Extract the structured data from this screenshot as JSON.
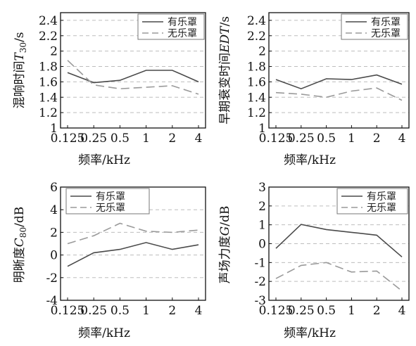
{
  "legend": {
    "with_shell": "有乐罩",
    "without_shell": "无乐罩"
  },
  "colors": {
    "with_shell": "#4a4a4a",
    "without_shell": "#9a9a9a",
    "grid": "#bdbdbd",
    "axis": "#111111"
  },
  "chart_data": [
    {
      "type": "line",
      "xlabel": "频率/kHz",
      "ylabel_pre": "混响时间",
      "ylabel_sym": "T",
      "ylabel_sub": "30",
      "ylabel_post": "/s",
      "x_ticks": [
        "0.125",
        "0.25",
        "0.5",
        "1",
        "2",
        "4"
      ],
      "y_ticks": [
        "1",
        "1.2",
        "1.4",
        "1.6",
        "1.8",
        "2",
        "2.2",
        "2.4"
      ],
      "ylim": [
        1,
        2.5
      ],
      "legend_position": "top-right",
      "series": [
        {
          "name": "有乐罩",
          "values": [
            1.72,
            1.59,
            1.62,
            1.75,
            1.75,
            1.6
          ]
        },
        {
          "name": "无乐罩",
          "values": [
            1.88,
            1.56,
            1.51,
            1.53,
            1.55,
            1.44
          ]
        }
      ]
    },
    {
      "type": "line",
      "xlabel": "频率/kHz",
      "ylabel_pre": "早期衰变时间",
      "ylabel_sym": "EDT",
      "ylabel_sub": "",
      "ylabel_post": "/s",
      "x_ticks": [
        "0.125",
        "0.25",
        "0.5",
        "1",
        "2",
        "4"
      ],
      "y_ticks": [
        "1",
        "1.2",
        "1.4",
        "1.6",
        "1.8",
        "2",
        "2.2",
        "2.4"
      ],
      "ylim": [
        1,
        2.5
      ],
      "legend_position": "top-right",
      "series": [
        {
          "name": "有乐罩",
          "values": [
            1.63,
            1.51,
            1.64,
            1.63,
            1.69,
            1.57
          ]
        },
        {
          "name": "无乐罩",
          "values": [
            1.46,
            1.44,
            1.4,
            1.48,
            1.52,
            1.36
          ]
        }
      ]
    },
    {
      "type": "line",
      "xlabel": "频率/kHz",
      "ylabel_pre": "明晰度",
      "ylabel_sym": "C",
      "ylabel_sub": "80",
      "ylabel_post": "/dB",
      "x_ticks": [
        "0.125",
        "0.25",
        "0.5",
        "1",
        "2",
        "4"
      ],
      "y_ticks": [
        "-4",
        "-2",
        "0",
        "2",
        "4",
        "6"
      ],
      "ylim": [
        -4,
        6
      ],
      "legend_position": "top",
      "series": [
        {
          "name": "有乐罩",
          "values": [
            -1,
            0.2,
            0.5,
            1.1,
            0.5,
            0.9
          ]
        },
        {
          "name": "无乐罩",
          "values": [
            1.0,
            1.7,
            2.8,
            2.1,
            2.0,
            2.2
          ]
        }
      ]
    },
    {
      "type": "line",
      "xlabel": "频率/kHz",
      "ylabel_pre": "声场力度",
      "ylabel_sym": "G",
      "ylabel_sub": "",
      "ylabel_post": "/dB",
      "x_ticks": [
        "0.125",
        "0.25",
        "0.5",
        "1",
        "2",
        "4"
      ],
      "y_ticks": [
        "-3",
        "-2",
        "-1",
        "0",
        "1",
        "2",
        "3"
      ],
      "ylim": [
        -3,
        3
      ],
      "legend_position": "top-right",
      "series": [
        {
          "name": "有乐罩",
          "values": [
            -0.25,
            1.02,
            0.75,
            0.6,
            0.45,
            -0.7
          ]
        },
        {
          "name": "无乐罩",
          "values": [
            -1.85,
            -1.15,
            -1.0,
            -1.5,
            -1.45,
            -2.5
          ]
        }
      ]
    }
  ]
}
